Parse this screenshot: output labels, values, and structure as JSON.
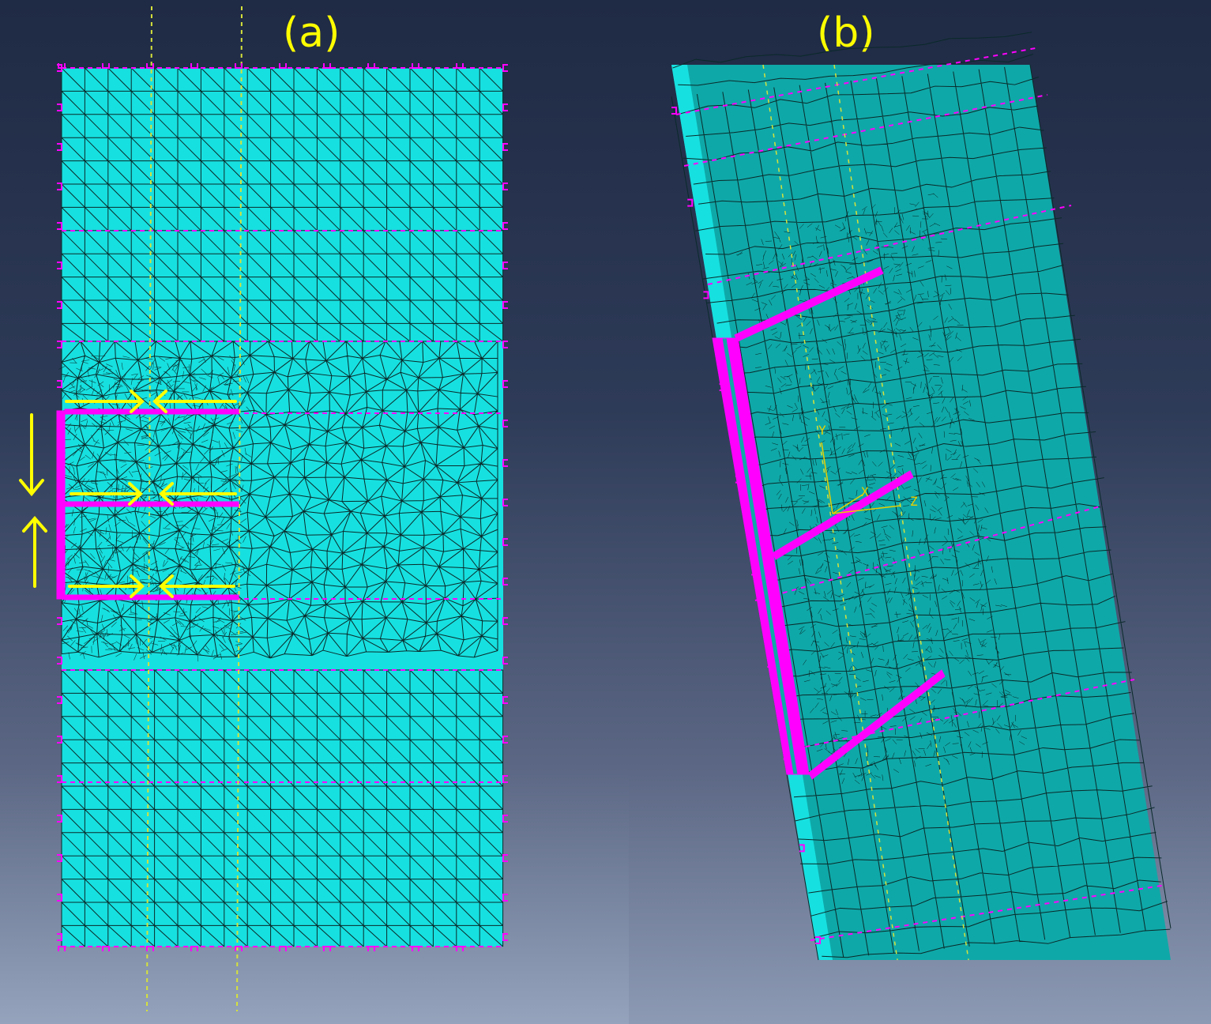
{
  "panels": [
    {
      "label": "(a)"
    },
    {
      "label": "(b)"
    }
  ],
  "axis_triad": {
    "y": "Y",
    "x": "X",
    "z": "Z"
  },
  "colors": {
    "mesh_fill": "#17e0e0",
    "mesh_fill_dark": "#0fa8a8",
    "mesh_line": "#0a2a2a",
    "constraint": "#ff00ff",
    "arrow": "#ffff00"
  }
}
